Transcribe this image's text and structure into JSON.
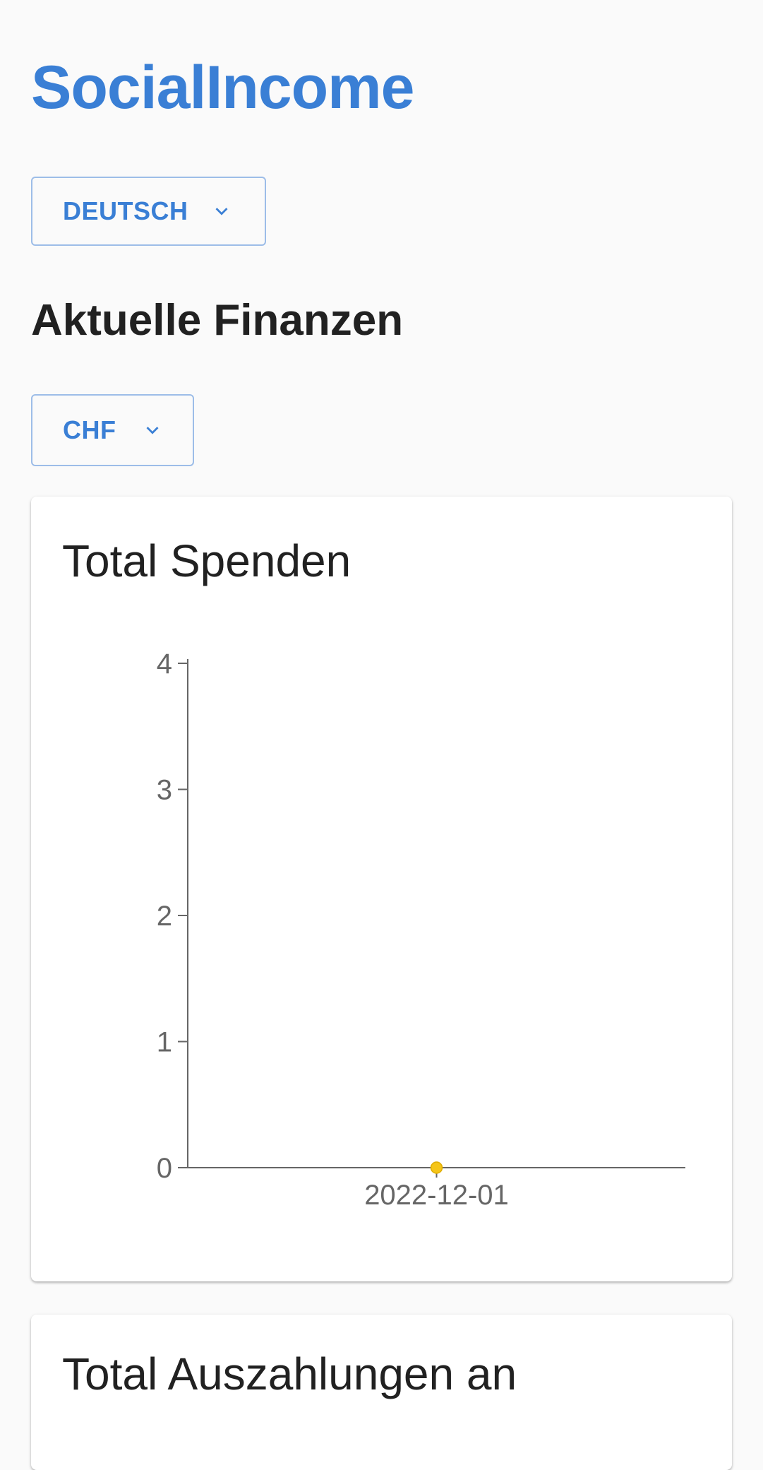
{
  "app": {
    "title": "SocialIncome"
  },
  "language_select": {
    "value": "DEUTSCH",
    "icon": "chevron-down-icon"
  },
  "finance": {
    "heading": "Aktuelle Finanzen",
    "currency_select": {
      "value": "CHF",
      "icon": "chevron-down-icon"
    }
  },
  "cards": [
    {
      "title": "Total Spenden"
    },
    {
      "title": "Total Auszahlungen an"
    }
  ],
  "colors": {
    "brand": "#3a7fd5",
    "data_point": "#f5c518",
    "axis": "#666666"
  },
  "chart_data": {
    "type": "line",
    "title": "Total Spenden",
    "xlabel": "",
    "ylabel": "",
    "x": [
      "2022-12-01"
    ],
    "series": [
      {
        "values": [
          0
        ]
      }
    ],
    "ylim": [
      0,
      4
    ],
    "y_ticks": [
      0,
      1,
      2,
      3,
      4
    ],
    "grid": false,
    "legend": "none"
  }
}
